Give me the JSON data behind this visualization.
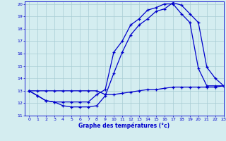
{
  "xlabel": "Graphe des températures (°c)",
  "xlim": [
    -0.5,
    23
  ],
  "ylim": [
    11,
    20.2
  ],
  "yticks": [
    11,
    12,
    13,
    14,
    15,
    16,
    17,
    18,
    19,
    20
  ],
  "xticks": [
    0,
    1,
    2,
    3,
    4,
    5,
    6,
    7,
    8,
    9,
    10,
    11,
    12,
    13,
    14,
    15,
    16,
    17,
    18,
    19,
    20,
    21,
    22,
    23
  ],
  "bg_color": "#d4edf0",
  "grid_color": "#a8cdd4",
  "line_color": "#0000cc",
  "line1_x": [
    0,
    1,
    2,
    3,
    4,
    5,
    6,
    7,
    8,
    9,
    10,
    11,
    12,
    13,
    14,
    15,
    16,
    17,
    18,
    19,
    20,
    21,
    22,
    23
  ],
  "line1_y": [
    13.0,
    12.6,
    12.2,
    12.1,
    11.8,
    11.7,
    11.7,
    11.7,
    11.8,
    12.6,
    14.4,
    16.1,
    17.5,
    18.3,
    18.8,
    19.4,
    19.6,
    20.1,
    19.9,
    19.2,
    18.5,
    14.9,
    14.0,
    13.4
  ],
  "line2_x": [
    0,
    1,
    2,
    3,
    4,
    5,
    6,
    7,
    8,
    9,
    10,
    11,
    12,
    13,
    14,
    15,
    16,
    17,
    18,
    19,
    20,
    21,
    22,
    23
  ],
  "line2_y": [
    13.0,
    12.6,
    12.2,
    12.1,
    12.1,
    12.1,
    12.1,
    12.1,
    12.7,
    13.1,
    16.1,
    17.0,
    18.3,
    18.8,
    19.5,
    19.7,
    20.0,
    20.0,
    19.2,
    18.5,
    14.8,
    13.4,
    13.4,
    13.4
  ],
  "line3_x": [
    0,
    1,
    2,
    3,
    4,
    5,
    6,
    7,
    8,
    9,
    10,
    11,
    12,
    13,
    14,
    15,
    16,
    17,
    18,
    19,
    20,
    21,
    22,
    23
  ],
  "line3_y": [
    13.0,
    13.0,
    13.0,
    13.0,
    13.0,
    13.0,
    13.0,
    13.0,
    13.0,
    12.7,
    12.7,
    12.8,
    12.9,
    13.0,
    13.1,
    13.1,
    13.2,
    13.3,
    13.3,
    13.3,
    13.3,
    13.3,
    13.3,
    13.4
  ]
}
